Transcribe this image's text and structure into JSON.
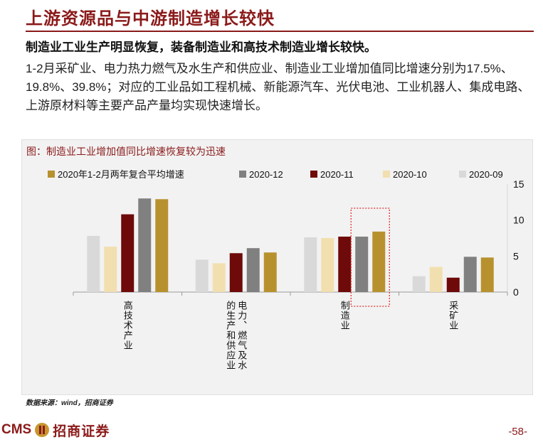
{
  "page": {
    "title": "上游资源品与中游制造增长较快",
    "subtitle": "制造业工业生产明显恢复，装备制造业和高技术制造业增长较快。",
    "body": "1-2月采矿业、电力热力燃气及水生产和供应业、制造业工业增加值同比增速分别为17.5%、19.8%、39.8%；对应的工业品如工程机械、新能源汽车、光伏电池、工业机器人、集成电路、上游原材料等主要产品产量均实现快速增长。",
    "chart_caption": "图：制造业工业增加值同比增速恢复较为迅速",
    "source": "数据来源：wind，招商证券",
    "footer_logo_latin": "CMS",
    "footer_logo_cn": "招商证券",
    "page_number": "-58-"
  },
  "chart_data": {
    "type": "bar",
    "categories": [
      "高技术产业",
      "电力、燃气及水的生产和供应业",
      "制造业",
      "采矿业"
    ],
    "category_label_lines": [
      [
        "高技术产业"
      ],
      [
        "电力、燃气及水",
        "的生产和供应业"
      ],
      [
        "制造业"
      ],
      [
        "采矿业"
      ]
    ],
    "series": [
      {
        "name": "2020-09",
        "color": "#d9d9d9",
        "values": [
          7.8,
          4.5,
          7.6,
          2.2
        ]
      },
      {
        "name": "2020-10",
        "color": "#f2dfb0",
        "values": [
          6.3,
          4.0,
          7.5,
          3.5
        ]
      },
      {
        "name": "2020-11",
        "color": "#6e0a0a",
        "values": [
          10.8,
          5.4,
          7.7,
          2.0
        ]
      },
      {
        "name": "2020-12",
        "color": "#808080",
        "values": [
          13.0,
          6.1,
          7.7,
          4.9
        ]
      },
      {
        "name": "2020年1-2月两年复合平均增速",
        "color": "#b8912f",
        "values": [
          12.9,
          5.5,
          8.4,
          4.8
        ]
      }
    ],
    "legend_order": [
      "2020年1-2月两年复合平均增速",
      "2020-12",
      "2020-11",
      "2020-10",
      "2020-09"
    ],
    "legend_position": "top",
    "y_axis_side": "right",
    "ylim": [
      0,
      15
    ],
    "yticks": [
      "0",
      "5",
      "10",
      "15"
    ],
    "highlight_category": "制造业",
    "highlight_color": "#e03030",
    "grid": false
  }
}
